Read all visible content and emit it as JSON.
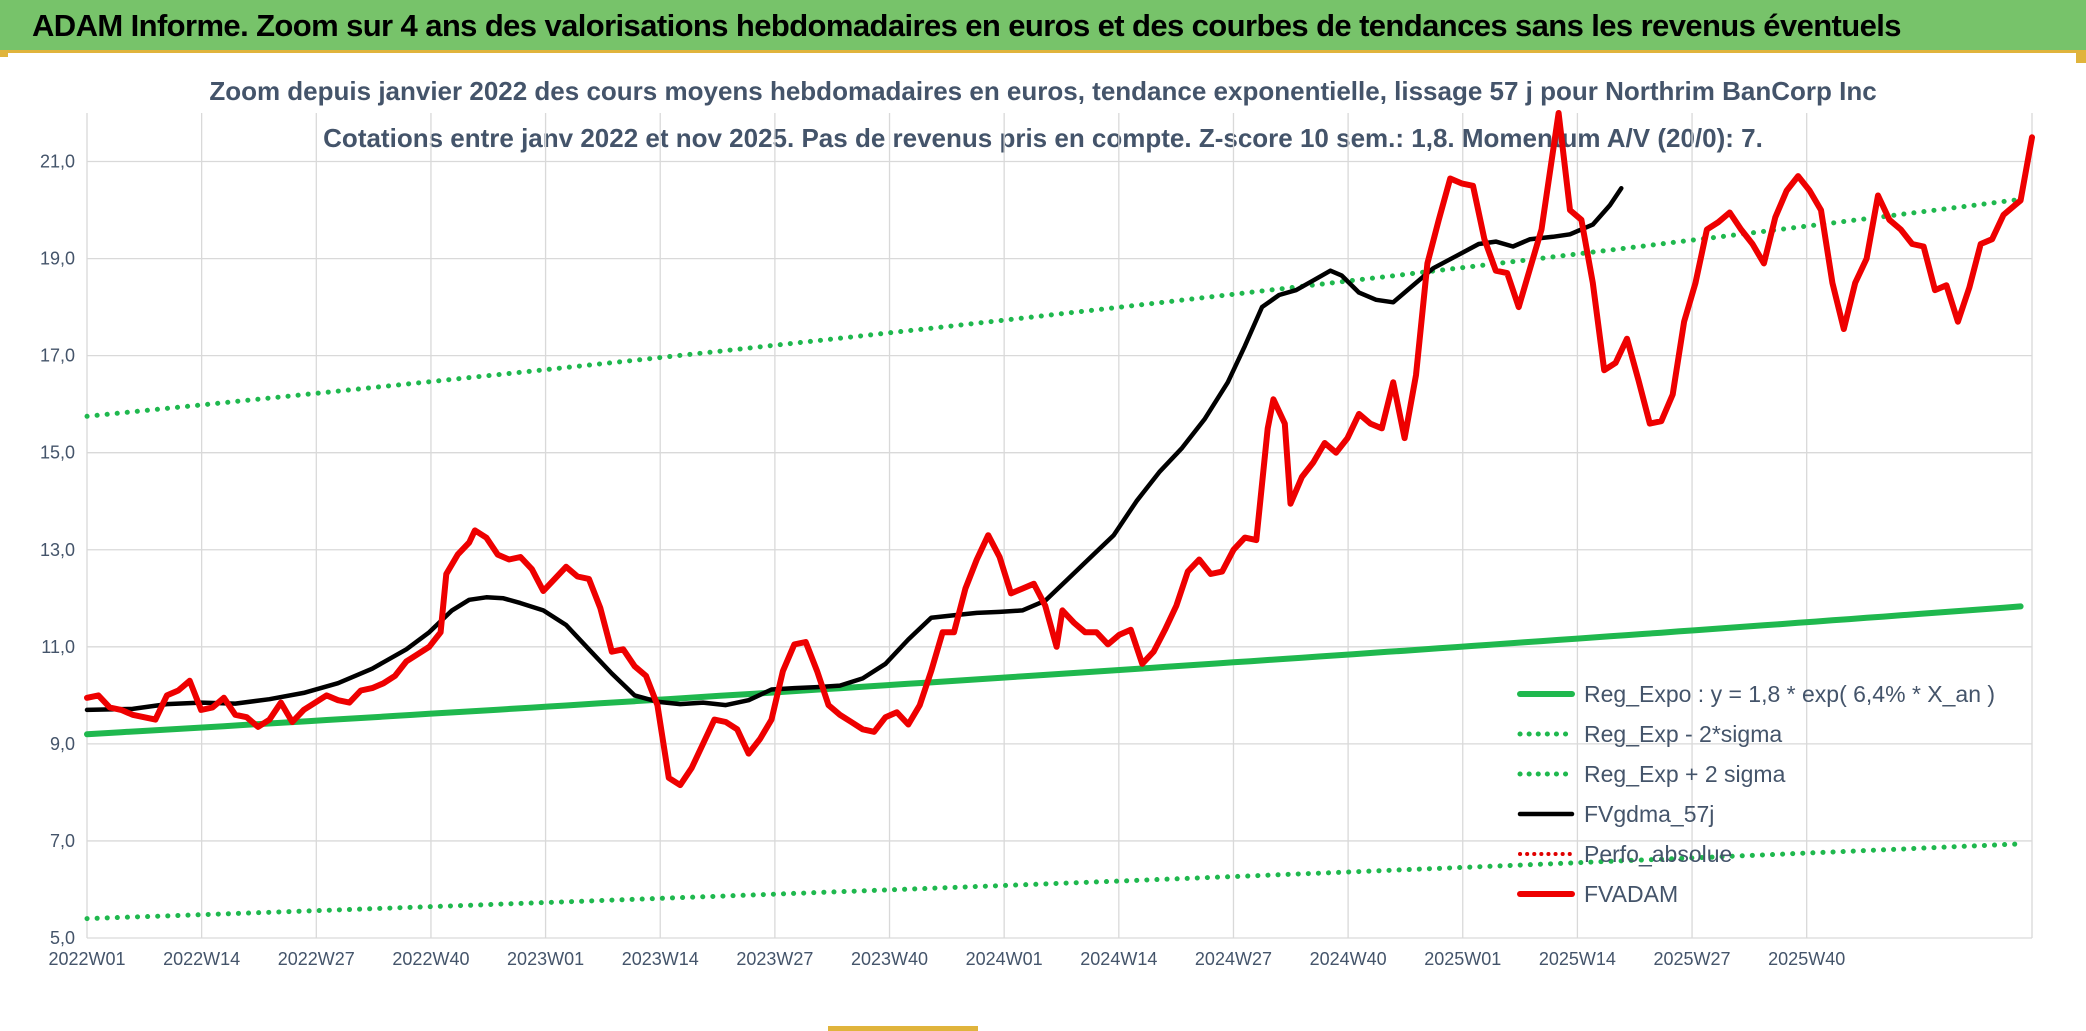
{
  "header": {
    "title": "ADAM Informe. Zoom sur 4 ans des valorisations hebdomadaires en euros et des courbes de tendances sans les revenus éventuels"
  },
  "chart_data": {
    "type": "line",
    "title": "Zoom depuis janvier 2022 des cours moyens hebdomadaires en euros, tendance exponentielle, lissage 57 j pour Northrim BanCorp Inc",
    "subtitle": "Cotations entre janv 2022 et nov 2025. Pas de revenus pris en compte. Z-score 10 sem.: 1,8. Momentum A/V (20/0): 7.",
    "xlabel": "",
    "ylabel": "",
    "ylim": [
      5.0,
      22.0
    ],
    "yticks": [
      "5,0",
      "7,0",
      "9,0",
      "11,0",
      "13,0",
      "15,0",
      "17,0",
      "19,0",
      "21,0"
    ],
    "xtick_labels": [
      "2022W01",
      "2022W14",
      "2022W27",
      "2022W40",
      "2023W01",
      "2023W14",
      "2023W27",
      "2023W40",
      "2024W01",
      "2024W14",
      "2024W27",
      "2024W40",
      "2025W01",
      "2025W14",
      "2025W27",
      "2025W40"
    ],
    "x_points": 205,
    "grid": true,
    "legend_position": "bottom-right",
    "colors": {
      "reg": "#1fb84e",
      "fvgdma": "#000000",
      "fvadam": "#ee0000",
      "perfo": "#e00000",
      "text": "#44546a",
      "grid": "#d9d9d9"
    },
    "series": [
      {
        "name": "Reg_Expo : y = 1,8 * exp( 6,4% *  X_an )",
        "style": "solid-green",
        "start": 9.2,
        "end": 11.85
      },
      {
        "name": "Reg_Exp - 2*sigma",
        "style": "dotted-green",
        "start": 5.4,
        "end": 6.95
      },
      {
        "name": "Reg_Exp + 2 sigma",
        "style": "dotted-green",
        "start": 15.75,
        "end": 20.25
      },
      {
        "name": "FVgdma_57j",
        "style": "solid-black",
        "keypoints": [
          [
            0,
            9.7
          ],
          [
            8,
            9.72
          ],
          [
            14,
            9.82
          ],
          [
            20,
            9.85
          ],
          [
            26,
            9.83
          ],
          [
            32,
            9.92
          ],
          [
            38,
            10.05
          ],
          [
            44,
            10.25
          ],
          [
            50,
            10.55
          ],
          [
            56,
            10.95
          ],
          [
            60,
            11.3
          ],
          [
            64,
            11.75
          ],
          [
            67,
            11.97
          ],
          [
            70,
            12.02
          ],
          [
            73,
            12.0
          ],
          [
            76,
            11.9
          ],
          [
            80,
            11.75
          ],
          [
            84,
            11.45
          ],
          [
            88,
            10.95
          ],
          [
            92,
            10.45
          ],
          [
            96,
            10.0
          ],
          [
            100,
            9.87
          ],
          [
            104,
            9.82
          ],
          [
            108,
            9.85
          ],
          [
            112,
            9.8
          ],
          [
            116,
            9.9
          ],
          [
            120,
            10.12
          ],
          [
            124,
            10.15
          ],
          [
            128,
            10.17
          ],
          [
            132,
            10.2
          ],
          [
            136,
            10.35
          ],
          [
            140,
            10.65
          ],
          [
            144,
            11.15
          ],
          [
            148,
            11.6
          ],
          [
            152,
            11.65
          ],
          [
            156,
            11.7
          ],
          [
            160,
            11.72
          ],
          [
            164,
            11.75
          ],
          [
            168,
            11.95
          ],
          [
            172,
            12.4
          ],
          [
            176,
            12.85
          ],
          [
            180,
            13.3
          ],
          [
            184,
            14.0
          ],
          [
            188,
            14.6
          ],
          [
            192,
            15.1
          ],
          [
            196,
            15.7
          ],
          [
            200,
            16.45
          ],
          [
            203,
            17.2
          ],
          [
            206,
            18.0
          ],
          [
            209,
            18.25
          ],
          [
            212,
            18.35
          ],
          [
            215,
            18.55
          ],
          [
            218,
            18.75
          ],
          [
            220,
            18.65
          ],
          [
            223,
            18.3
          ],
          [
            226,
            18.15
          ],
          [
            229,
            18.1
          ],
          [
            232,
            18.4
          ],
          [
            236,
            18.8
          ],
          [
            240,
            19.05
          ],
          [
            244,
            19.3
          ],
          [
            247,
            19.35
          ],
          [
            250,
            19.25
          ],
          [
            253,
            19.4
          ],
          [
            257,
            19.45
          ],
          [
            260,
            19.5
          ],
          [
            264,
            19.7
          ],
          [
            267,
            20.1
          ],
          [
            269,
            20.45
          ]
        ]
      },
      {
        "name": "Perfo_absolue",
        "style": "dotted-red"
      },
      {
        "name": "FVADAM",
        "style": "solid-red",
        "keypoints": [
          [
            0,
            9.95
          ],
          [
            2,
            10.0
          ],
          [
            4,
            9.75
          ],
          [
            6,
            9.7
          ],
          [
            8,
            9.6
          ],
          [
            10,
            9.55
          ],
          [
            12,
            9.5
          ],
          [
            14,
            10.0
          ],
          [
            16,
            10.1
          ],
          [
            18,
            10.3
          ],
          [
            20,
            9.7
          ],
          [
            22,
            9.75
          ],
          [
            24,
            9.95
          ],
          [
            26,
            9.6
          ],
          [
            28,
            9.55
          ],
          [
            30,
            9.35
          ],
          [
            32,
            9.5
          ],
          [
            34,
            9.85
          ],
          [
            36,
            9.45
          ],
          [
            38,
            9.7
          ],
          [
            40,
            9.85
          ],
          [
            42,
            10.0
          ],
          [
            44,
            9.9
          ],
          [
            46,
            9.85
          ],
          [
            48,
            10.1
          ],
          [
            50,
            10.15
          ],
          [
            52,
            10.25
          ],
          [
            54,
            10.4
          ],
          [
            56,
            10.7
          ],
          [
            58,
            10.85
          ],
          [
            60,
            11.0
          ],
          [
            62,
            11.3
          ],
          [
            63,
            12.5
          ],
          [
            65,
            12.9
          ],
          [
            67,
            13.15
          ],
          [
            68,
            13.4
          ],
          [
            70,
            13.25
          ],
          [
            72,
            12.9
          ],
          [
            74,
            12.8
          ],
          [
            76,
            12.85
          ],
          [
            78,
            12.6
          ],
          [
            80,
            12.15
          ],
          [
            82,
            12.4
          ],
          [
            84,
            12.65
          ],
          [
            86,
            12.45
          ],
          [
            88,
            12.4
          ],
          [
            90,
            11.8
          ],
          [
            92,
            10.9
          ],
          [
            94,
            10.95
          ],
          [
            96,
            10.6
          ],
          [
            98,
            10.4
          ],
          [
            100,
            9.8
          ],
          [
            102,
            8.3
          ],
          [
            104,
            8.15
          ],
          [
            106,
            8.5
          ],
          [
            108,
            9.0
          ],
          [
            110,
            9.5
          ],
          [
            112,
            9.45
          ],
          [
            114,
            9.3
          ],
          [
            116,
            8.8
          ],
          [
            118,
            9.1
          ],
          [
            120,
            9.5
          ],
          [
            122,
            10.5
          ],
          [
            124,
            11.05
          ],
          [
            126,
            11.1
          ],
          [
            128,
            10.5
          ],
          [
            130,
            9.8
          ],
          [
            132,
            9.6
          ],
          [
            134,
            9.45
          ],
          [
            136,
            9.3
          ],
          [
            138,
            9.25
          ],
          [
            140,
            9.55
          ],
          [
            142,
            9.65
          ],
          [
            144,
            9.4
          ],
          [
            146,
            9.8
          ],
          [
            148,
            10.5
          ],
          [
            150,
            11.3
          ],
          [
            152,
            11.3
          ],
          [
            154,
            12.2
          ],
          [
            156,
            12.8
          ],
          [
            158,
            13.3
          ],
          [
            160,
            12.85
          ],
          [
            162,
            12.1
          ],
          [
            164,
            12.2
          ],
          [
            166,
            12.3
          ],
          [
            168,
            11.85
          ],
          [
            170,
            11.0
          ],
          [
            171,
            11.75
          ],
          [
            173,
            11.5
          ],
          [
            175,
            11.3
          ],
          [
            177,
            11.3
          ],
          [
            179,
            11.05
          ],
          [
            181,
            11.25
          ],
          [
            183,
            11.35
          ],
          [
            185,
            10.65
          ],
          [
            187,
            10.9
          ],
          [
            189,
            11.35
          ],
          [
            191,
            11.85
          ],
          [
            193,
            12.55
          ],
          [
            195,
            12.8
          ],
          [
            197,
            12.5
          ],
          [
            199,
            12.55
          ],
          [
            201,
            13.0
          ],
          [
            203,
            13.25
          ],
          [
            205,
            13.2
          ],
          [
            207,
            15.5
          ],
          [
            208,
            16.1
          ],
          [
            210,
            15.6
          ],
          [
            211,
            13.95
          ],
          [
            213,
            14.5
          ],
          [
            215,
            14.8
          ],
          [
            217,
            15.2
          ],
          [
            219,
            15.0
          ],
          [
            221,
            15.3
          ],
          [
            223,
            15.8
          ],
          [
            225,
            15.6
          ],
          [
            227,
            15.5
          ],
          [
            229,
            16.45
          ],
          [
            231,
            15.3
          ],
          [
            233,
            16.6
          ],
          [
            235,
            18.9
          ],
          [
            237,
            19.8
          ],
          [
            239,
            20.65
          ],
          [
            241,
            20.55
          ],
          [
            243,
            20.5
          ],
          [
            245,
            19.4
          ],
          [
            247,
            18.75
          ],
          [
            249,
            18.7
          ],
          [
            251,
            18.0
          ],
          [
            253,
            18.8
          ],
          [
            255,
            19.6
          ],
          [
            257,
            21.2
          ],
          [
            258,
            22.0
          ],
          [
            260,
            20.0
          ],
          [
            262,
            19.8
          ],
          [
            264,
            18.5
          ],
          [
            266,
            16.7
          ],
          [
            268,
            16.85
          ],
          [
            270,
            17.35
          ],
          [
            272,
            16.5
          ],
          [
            274,
            15.6
          ],
          [
            276,
            15.65
          ],
          [
            278,
            16.2
          ],
          [
            280,
            17.7
          ],
          [
            282,
            18.5
          ],
          [
            284,
            19.6
          ],
          [
            286,
            19.75
          ],
          [
            288,
            19.95
          ],
          [
            290,
            19.6
          ],
          [
            292,
            19.3
          ],
          [
            294,
            18.9
          ],
          [
            296,
            19.85
          ],
          [
            298,
            20.4
          ],
          [
            300,
            20.7
          ],
          [
            302,
            20.4
          ],
          [
            304,
            20.0
          ],
          [
            306,
            18.5
          ],
          [
            308,
            17.55
          ],
          [
            310,
            18.5
          ],
          [
            312,
            19.0
          ],
          [
            314,
            20.3
          ],
          [
            316,
            19.8
          ],
          [
            318,
            19.6
          ],
          [
            320,
            19.3
          ],
          [
            322,
            19.25
          ],
          [
            324,
            18.35
          ],
          [
            326,
            18.45
          ],
          [
            328,
            17.7
          ],
          [
            330,
            18.4
          ],
          [
            332,
            19.3
          ],
          [
            334,
            19.4
          ],
          [
            336,
            19.9
          ],
          [
            338,
            20.1
          ],
          [
            339,
            20.2
          ],
          [
            341,
            21.5
          ]
        ]
      }
    ]
  }
}
